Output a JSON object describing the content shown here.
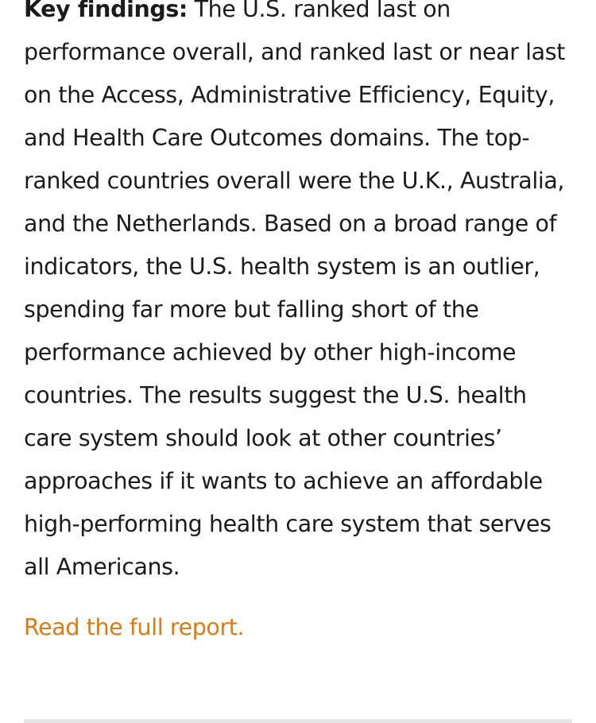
{
  "article": {
    "findings_label": "Key findings:",
    "findings_text": "The U.S. ranked last on performance overall, and ranked last or near last on the Access, Administrative Efficiency, Equity, and Health Care Outcomes domains. The top-ranked countries overall were the U.K., Australia, and the Netherlands. Based on a broad range of indicators, the U.S. health system is an outlier, spending far more but falling short of the performance achieved by other high-income countries. The results suggest the U.S. health care system should look at other countries’ approaches if it wants to achieve an affordable high-performing health care system that serves all Americans.",
    "report_link_label": "Read the full report."
  },
  "colors": {
    "text": "#1b1b1b",
    "link": "#e07a10",
    "divider": "#e6e6e6"
  }
}
